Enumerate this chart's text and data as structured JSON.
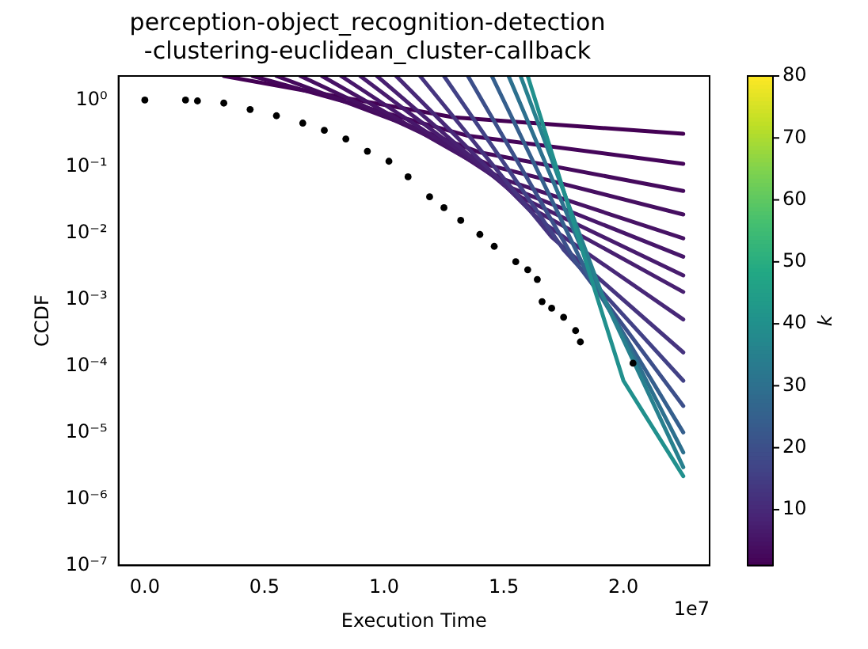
{
  "chart_data": {
    "type": "scatter",
    "title": [
      "perception-object_recognition-detection",
      "-clustering-euclidean_cluster-callback"
    ],
    "xlabel": "Execution Time",
    "ylabel": "CCDF",
    "clabel": "k",
    "annotations": [
      "1e7"
    ],
    "log": "y",
    "grid": false,
    "legend": false,
    "xlim": [
      -0.11,
      2.36
    ],
    "xticks": [
      {
        "value": 0,
        "label": "0.0"
      },
      0.5,
      {
        "value": 1,
        "label": "1.0"
      },
      1.5,
      {
        "value": 2,
        "label": "2.0"
      }
    ],
    "ylim": [
      1e-07,
      2.3
    ],
    "yticks": [
      {
        "value": 1e-07,
        "label": "10⁻⁷"
      },
      {
        "value": 1e-06,
        "label": "10⁻⁶"
      },
      {
        "value": 1e-05,
        "label": "10⁻⁵"
      },
      {
        "value": 0.0001,
        "label": "10⁻⁴"
      },
      {
        "value": 0.001,
        "label": "10⁻³"
      },
      {
        "value": 0.01,
        "label": "10⁻²"
      },
      {
        "value": 0.1,
        "label": "10⁻¹"
      },
      {
        "value": 1,
        "label": "10⁰"
      }
    ],
    "clim": [
      1,
      80
    ],
    "cticks": [
      10,
      20,
      30,
      40,
      50,
      60,
      70,
      80
    ],
    "series": [
      {
        "type": "line",
        "color": "#440154",
        "x": [
          0.33,
          1.29,
          2.25
        ],
        "values": [
          2.3,
          0.55,
          0.31
        ]
      },
      {
        "type": "line",
        "color": "#45055a",
        "x": [
          0.45,
          1.35,
          2.25
        ],
        "values": [
          2.3,
          0.29,
          0.11
        ]
      },
      {
        "type": "line",
        "color": "#450a5d",
        "x": [
          0.55,
          1.4,
          2.25
        ],
        "values": [
          2.3,
          0.163,
          0.043
        ]
      },
      {
        "type": "line",
        "color": "#460f61",
        "x": [
          0.65,
          1.45,
          2.25
        ],
        "values": [
          2.3,
          0.102,
          0.019
        ]
      },
      {
        "type": "line",
        "color": "#471365",
        "x": [
          0.74,
          1.495,
          2.25
        ],
        "values": [
          2.3,
          0.065,
          0.0083
        ]
      },
      {
        "type": "line",
        "color": "#47176a",
        "x": [
          0.82,
          1.535,
          2.25
        ],
        "values": [
          2.3,
          0.047,
          0.0044
        ]
      },
      {
        "type": "line",
        "color": "#481c6e",
        "x": [
          0.9,
          1.575,
          2.25
        ],
        "values": [
          2.3,
          0.034,
          0.0023
        ]
      },
      {
        "type": "line",
        "color": "#482071",
        "x": [
          0.97,
          1.61,
          2.25
        ],
        "values": [
          2.3,
          0.024,
          0.0013
        ]
      },
      {
        "type": "line",
        "color": "#482878",
        "x": [
          1.05,
          1.65,
          2.25
        ],
        "values": [
          2.3,
          0.0155,
          0.0005
        ]
      },
      {
        "type": "line",
        "color": "#46347f",
        "x": [
          1.15,
          1.7,
          2.25
        ],
        "values": [
          2.3,
          0.0087,
          0.00016
        ]
      },
      {
        "type": "line",
        "color": "#424186",
        "x": [
          1.25,
          1.75,
          2.25
        ],
        "values": [
          2.3,
          0.0056,
          6e-05
        ]
      },
      {
        "type": "line",
        "color": "#3c4f8a",
        "x": [
          1.35,
          1.8,
          2.25
        ],
        "values": [
          2.3,
          0.0037,
          2.5e-05
        ]
      },
      {
        "type": "line",
        "color": "#355f8d",
        "x": [
          1.45,
          1.85,
          2.25
        ],
        "values": [
          2.3,
          0.0024,
          1e-05
        ]
      },
      {
        "type": "line",
        "color": "#2d708e",
        "x": [
          1.52,
          1.885,
          2.25
        ],
        "values": [
          2.3,
          0.0018,
          5e-06
        ]
      },
      {
        "type": "line",
        "color": "#27808e",
        "x": [
          1.57,
          1.91,
          2.25
        ],
        "values": [
          2.3,
          0.0012,
          3e-06
        ]
      },
      {
        "type": "line",
        "color": "#21908d",
        "x": [
          1.6,
          1.8,
          2.0,
          2.25
        ],
        "values": [
          2.3,
          0.0115,
          6e-05,
          2.2e-06
        ]
      },
      {
        "type": "scatter",
        "color": "#000000",
        "x": [
          0,
          0.17,
          0.22,
          0.33,
          0.44,
          0.55,
          0.66,
          0.75,
          0.84,
          0.93,
          1.02,
          1.1,
          1.19,
          1.25,
          1.32,
          1.4,
          1.46,
          1.55,
          1.6,
          1.64,
          1.66,
          1.7,
          1.75,
          1.8,
          1.82,
          2.04
        ],
        "values": [
          1,
          1,
          0.97,
          0.9,
          0.72,
          0.58,
          0.45,
          0.35,
          0.26,
          0.17,
          0.12,
          0.07,
          0.035,
          0.024,
          0.0155,
          0.0095,
          0.0063,
          0.0037,
          0.0028,
          0.002,
          0.00093,
          0.00074,
          0.00054,
          0.00034,
          0.00023,
          0.00011
        ]
      }
    ]
  }
}
